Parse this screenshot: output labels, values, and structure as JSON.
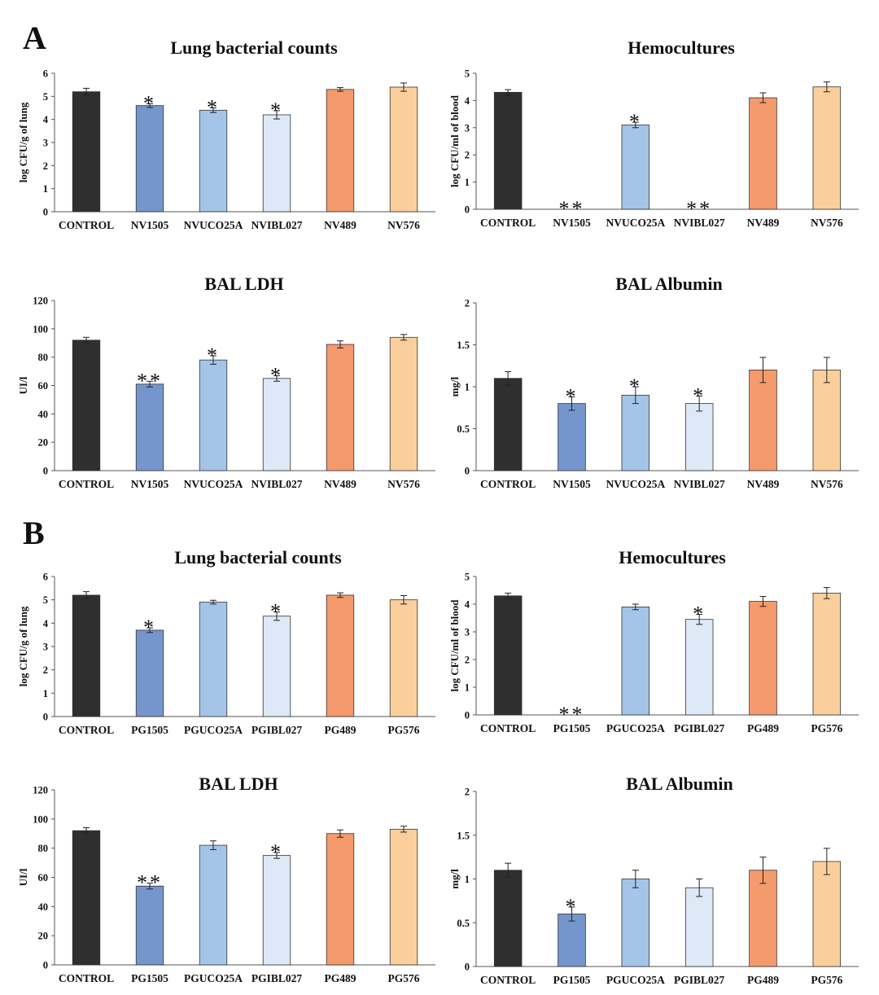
{
  "panel_labels": [
    "A",
    "B"
  ],
  "colors": {
    "control": "#2f2f2f",
    "strain1505": "#7596cc",
    "strainUCO25A": "#a4c5e8",
    "strainIBL027": "#dde9f6",
    "strain489": "#f59a6c",
    "strain576": "#fbcf9c"
  },
  "chart_data": [
    {
      "type": "bar",
      "panel": "A",
      "title": "Lung bacterial counts",
      "xlabel": "",
      "ylabel": "log CFU/g of lung",
      "ylim": [
        0,
        6
      ],
      "yticks": [
        "0",
        "1",
        "2",
        "3",
        "4",
        "5",
        "6"
      ],
      "categories": [
        "CONTROL",
        "NV1505",
        "NVUCO25A",
        "NVIBL027",
        "NV489",
        "NV576"
      ],
      "values": [
        5.2,
        4.6,
        4.4,
        4.2,
        5.3,
        5.4
      ],
      "errors": [
        0.15,
        0.08,
        0.1,
        0.18,
        0.08,
        0.18
      ],
      "significance": [
        "",
        "*",
        "*",
        "*",
        "",
        ""
      ]
    },
    {
      "type": "bar",
      "panel": "A",
      "title": "Hemocultures",
      "xlabel": "",
      "ylabel": "log CFU/ml of blood",
      "ylim": [
        0,
        5
      ],
      "yticks": [
        "0",
        "1",
        "2",
        "3",
        "4",
        "5"
      ],
      "categories": [
        "CONTROL",
        "NV1505",
        "NVUCO25A",
        "NVIBL027",
        "NV489",
        "NV576"
      ],
      "values": [
        4.3,
        0,
        3.1,
        0,
        4.1,
        4.5
      ],
      "errors": [
        0.1,
        0,
        0.1,
        0,
        0.18,
        0.18
      ],
      "significance": [
        "",
        "**",
        "*",
        "**",
        "",
        ""
      ]
    },
    {
      "type": "bar",
      "panel": "A",
      "title": "BAL LDH",
      "xlabel": "",
      "ylabel": "UI/l",
      "ylim": [
        0,
        120
      ],
      "yticks": [
        "0",
        "20",
        "40",
        "60",
        "80",
        "100",
        "120"
      ],
      "categories": [
        "CONTROL",
        "NV1505",
        "NVUCO25A",
        "NVIBL027",
        "NV489",
        "NV576"
      ],
      "values": [
        92,
        61,
        78,
        65,
        89,
        94
      ],
      "errors": [
        2,
        2,
        3,
        2,
        2.5,
        2
      ],
      "significance": [
        "",
        "**",
        "*",
        "*",
        "",
        ""
      ]
    },
    {
      "type": "bar",
      "panel": "A",
      "title": "BAL Albumin",
      "xlabel": "",
      "ylabel": "mg/l",
      "ylim": [
        0,
        2
      ],
      "yticks": [
        "0",
        "0.5",
        "1",
        "1.5",
        "2"
      ],
      "categories": [
        "CONTROL",
        "NV1505",
        "NVUCO25A",
        "NVIBL027",
        "NV489",
        "NV576"
      ],
      "values": [
        1.1,
        0.8,
        0.9,
        0.8,
        1.2,
        1.2
      ],
      "errors": [
        0.08,
        0.08,
        0.1,
        0.09,
        0.15,
        0.15
      ],
      "significance": [
        "",
        "*",
        "*",
        "*",
        "",
        ""
      ]
    },
    {
      "type": "bar",
      "panel": "B",
      "title": "Lung bacterial counts",
      "xlabel": "",
      "ylabel": "log CFU/g of lung",
      "ylim": [
        0,
        6
      ],
      "yticks": [
        "0",
        "1",
        "2",
        "3",
        "4",
        "5",
        "6"
      ],
      "categories": [
        "CONTROL",
        "PG1505",
        "PGUCO25A",
        "PGIBL027",
        "PG489",
        "PG576"
      ],
      "values": [
        5.2,
        3.7,
        4.9,
        4.3,
        5.2,
        5.0
      ],
      "errors": [
        0.15,
        0.1,
        0.08,
        0.18,
        0.1,
        0.18
      ],
      "significance": [
        "",
        "*",
        "",
        "*",
        "",
        ""
      ]
    },
    {
      "type": "bar",
      "panel": "B",
      "title": "Hemocultures",
      "xlabel": "",
      "ylabel": "log CFU/ml of blood",
      "ylim": [
        0,
        5
      ],
      "yticks": [
        "0",
        "1",
        "2",
        "3",
        "4",
        "5"
      ],
      "categories": [
        "CONTROL",
        "PG1505",
        "PGUCO25A",
        "PGIBL027",
        "PG489",
        "PG576"
      ],
      "values": [
        4.3,
        0,
        3.9,
        3.45,
        4.1,
        4.4
      ],
      "errors": [
        0.1,
        0,
        0.1,
        0.18,
        0.18,
        0.2
      ],
      "significance": [
        "",
        "**",
        "",
        "*",
        "",
        ""
      ]
    },
    {
      "type": "bar",
      "panel": "B",
      "title": "BAL LDH",
      "xlabel": "",
      "ylabel": "UI/l",
      "ylim": [
        0,
        120
      ],
      "yticks": [
        "0",
        "20",
        "40",
        "60",
        "80",
        "100",
        "120"
      ],
      "categories": [
        "CONTROL",
        "PG1505",
        "PGUCO25A",
        "PGIBL027",
        "PG489",
        "PG576"
      ],
      "values": [
        92,
        54,
        82,
        75,
        90,
        93
      ],
      "errors": [
        2,
        2,
        3,
        2,
        2.5,
        2
      ],
      "significance": [
        "",
        "**",
        "",
        "*",
        "",
        ""
      ]
    },
    {
      "type": "bar",
      "panel": "B",
      "title": "BAL Albumin",
      "xlabel": "",
      "ylabel": "mg/l",
      "ylim": [
        0,
        2
      ],
      "yticks": [
        "0",
        "0.5",
        "1",
        "1.5",
        "2"
      ],
      "categories": [
        "CONTROL",
        "PG1505",
        "PGUCO25A",
        "PGIBL027",
        "PG489",
        "PG576"
      ],
      "values": [
        1.1,
        0.6,
        1.0,
        0.9,
        1.1,
        1.2
      ],
      "errors": [
        0.08,
        0.08,
        0.1,
        0.1,
        0.15,
        0.15
      ],
      "significance": [
        "",
        "*",
        "",
        "",
        "",
        ""
      ]
    }
  ]
}
